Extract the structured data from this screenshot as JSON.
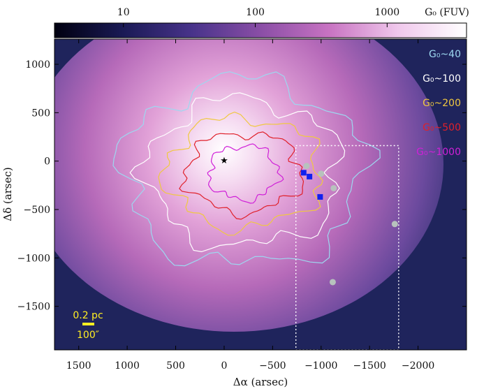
{
  "chart_data": {
    "type": "heatmap",
    "title": "",
    "xlabel": "Δα (arsec)",
    "ylabel": "Δδ (arsec)",
    "xlim": [
      1750,
      -2500
    ],
    "ylim": [
      -1950,
      1260
    ],
    "x_ticks": [
      1500,
      1000,
      500,
      0,
      -500,
      -1000,
      -1500,
      -2000
    ],
    "x_tick_labels": [
      "1500",
      "1000",
      "500",
      "0",
      "−500",
      "−1000",
      "−1500",
      "−2000"
    ],
    "y_ticks": [
      1000,
      500,
      0,
      -500,
      -1000,
      -1500
    ],
    "y_tick_labels": [
      "1000",
      "500",
      "0",
      "−500",
      "−1000",
      "−1500"
    ],
    "colorbar": {
      "label": "G₀ (FUV)",
      "scale": "log",
      "range": [
        3,
        4000
      ],
      "ticks": [
        10,
        100,
        1000
      ],
      "tick_labels": [
        "10",
        "100",
        "1000"
      ],
      "colors": [
        "#000010",
        "#1a1a55",
        "#48338a",
        "#8a4ea6",
        "#c873c2",
        "#f0c8ec",
        "#ffffff"
      ]
    },
    "contours": [
      {
        "label": "G₀~40",
        "level": 40,
        "color": "#9dd8f0",
        "radius": [
          1240,
          960
        ]
      },
      {
        "label": "G₀~100",
        "level": 100,
        "color": "#ffffff",
        "radius": [
          1000,
          760
        ]
      },
      {
        "label": "G₀~200",
        "level": 200,
        "color": "#f0c840",
        "radius": [
          800,
          570
        ]
      },
      {
        "label": "G₀~500",
        "level": 500,
        "color": "#e0202a",
        "radius": [
          600,
          410
        ]
      },
      {
        "label": "G₀~1000",
        "level": 1000,
        "color": "#d020d8",
        "radius": [
          360,
          280
        ]
      }
    ],
    "star": {
      "x": 0,
      "y": 0,
      "color": "#000000"
    },
    "blue_markers": [
      {
        "x": -820,
        "y": -120
      },
      {
        "x": -880,
        "y": -160
      },
      {
        "x": -990,
        "y": -370
      }
    ],
    "gray_markers": [
      {
        "x": -850,
        "y": -50
      },
      {
        "x": -1000,
        "y": -130
      },
      {
        "x": -1130,
        "y": -280
      },
      {
        "x": -1120,
        "y": -1250
      },
      {
        "x": -1760,
        "y": -650
      }
    ],
    "box": {
      "x0": -740,
      "x1": -1800,
      "y0": 160,
      "y1": -1950
    },
    "scale_bar": {
      "top_label": "0.2 pc",
      "bottom_label": "100″",
      "color": "#ffee22"
    }
  }
}
